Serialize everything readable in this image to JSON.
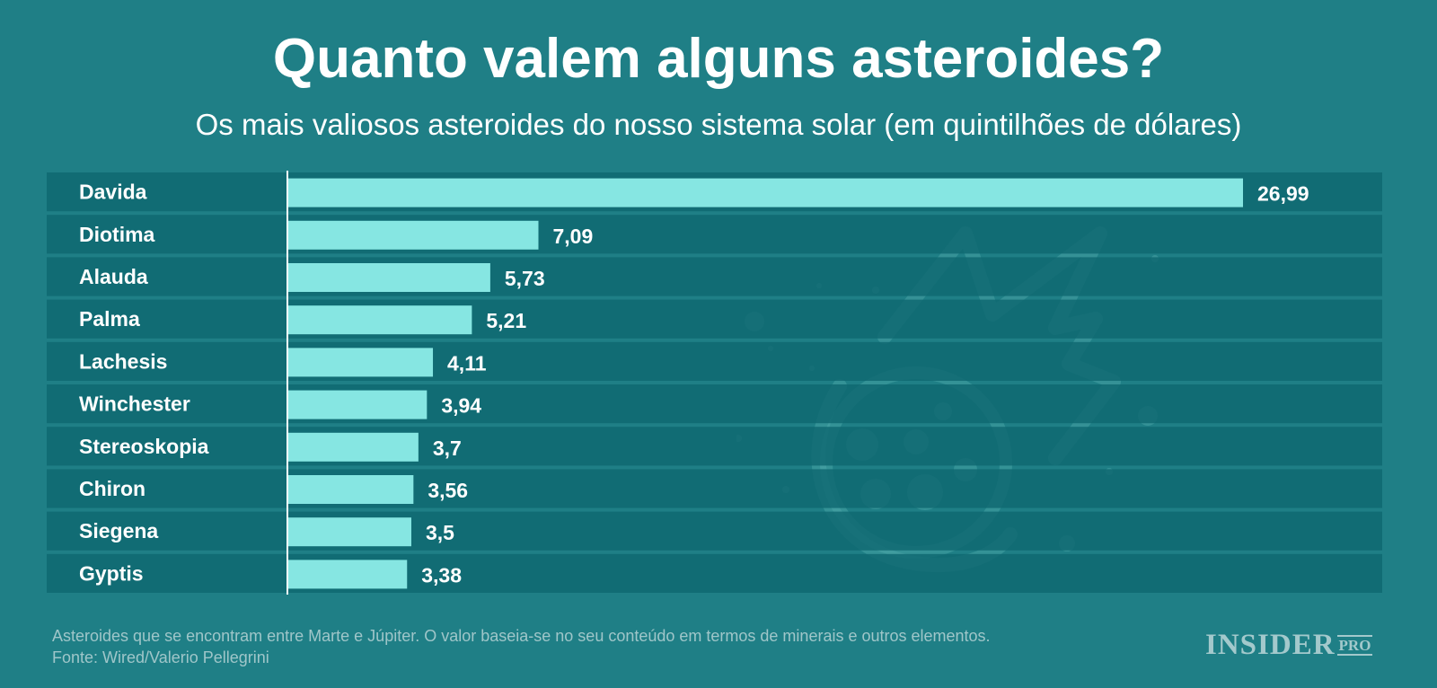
{
  "colors": {
    "background": "#1f7f86",
    "row": "#0f6870",
    "separator": "#2c8f95",
    "bar": "#86e6e2",
    "text": "#ffffff",
    "footnote": "#9fc6c9"
  },
  "header": {
    "title": "Quanto valem alguns asteroides?",
    "subtitle": "Os mais valiosos asteroides do nosso sistema solar (em quintilhões de dólares)"
  },
  "chart_data": {
    "type": "bar",
    "orientation": "horizontal",
    "title": "Quanto valem alguns asteroides?",
    "subtitle": "Os mais valiosos asteroides do nosso sistema solar (em quintilhões de dólares)",
    "categories": [
      "Davida",
      "Diotima",
      "Alauda",
      "Palma",
      "Lachesis",
      "Winchester",
      "Stereoskopia",
      "Chiron",
      "Siegena",
      "Gyptis"
    ],
    "values": [
      26.99,
      7.09,
      5.73,
      5.21,
      4.11,
      3.94,
      3.7,
      3.56,
      3.5,
      3.38
    ],
    "value_labels": [
      "26,99",
      "7,09",
      "5,73",
      "5,21",
      "4,11",
      "3,94",
      "3,7",
      "3,56",
      "3,5",
      "3,38"
    ],
    "xlim": [
      0,
      26.99
    ],
    "grid": false,
    "legend": "none"
  },
  "footer": {
    "note": "Asteroides que se encontram entre Marte e Júpiter. O valor baseia-se no seu conteúdo em termos de minerais e outros elementos.",
    "source": "Fonte: Wired/Valerio Pellegrini"
  },
  "brand": {
    "name": "INSIDER",
    "suffix": "PRO"
  },
  "decoration": {
    "icon": "asteroid-illustration-icon"
  }
}
